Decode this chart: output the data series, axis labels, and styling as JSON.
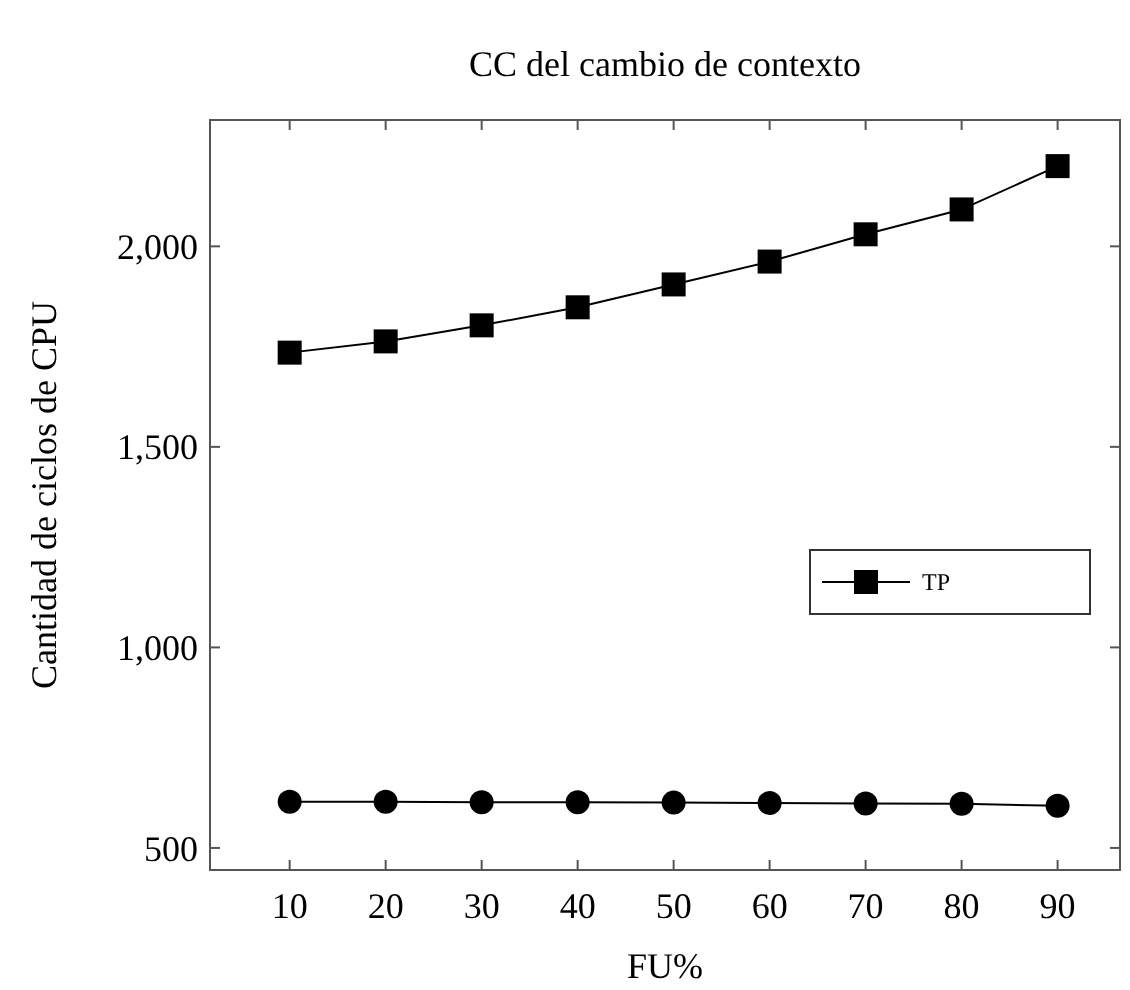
{
  "chart_data": {
    "type": "line",
    "title": "CC del cambio de contexto",
    "xlabel": "FU%",
    "ylabel": "Cantidad de ciclos de CPU",
    "x": [
      10,
      20,
      30,
      40,
      50,
      60,
      70,
      80,
      90
    ],
    "series": [
      {
        "name": "TP",
        "color": "#000000",
        "marker": "square",
        "values": [
          1735,
          1763,
          1803,
          1848,
          1905,
          1962,
          2030,
          2092,
          2200
        ]
      },
      {
        "color": "#000000",
        "marker": "circle",
        "values": [
          615,
          615,
          614,
          614,
          613,
          612,
          611,
          610,
          605
        ]
      }
    ],
    "xlim": [
      1.7,
      96.5
    ],
    "xticks": [
      10,
      20,
      30,
      40,
      50,
      60,
      70,
      80,
      90
    ],
    "ylim": [
      445,
      2315
    ],
    "yticks": [
      {
        "value": 500,
        "label": "500"
      },
      {
        "value": 1000,
        "label": "1,000"
      },
      {
        "value": 1500,
        "label": "1,500"
      },
      {
        "value": 2000,
        "label": "2,000"
      }
    ],
    "grid": false,
    "legend": "right",
    "line_style": "solid"
  }
}
